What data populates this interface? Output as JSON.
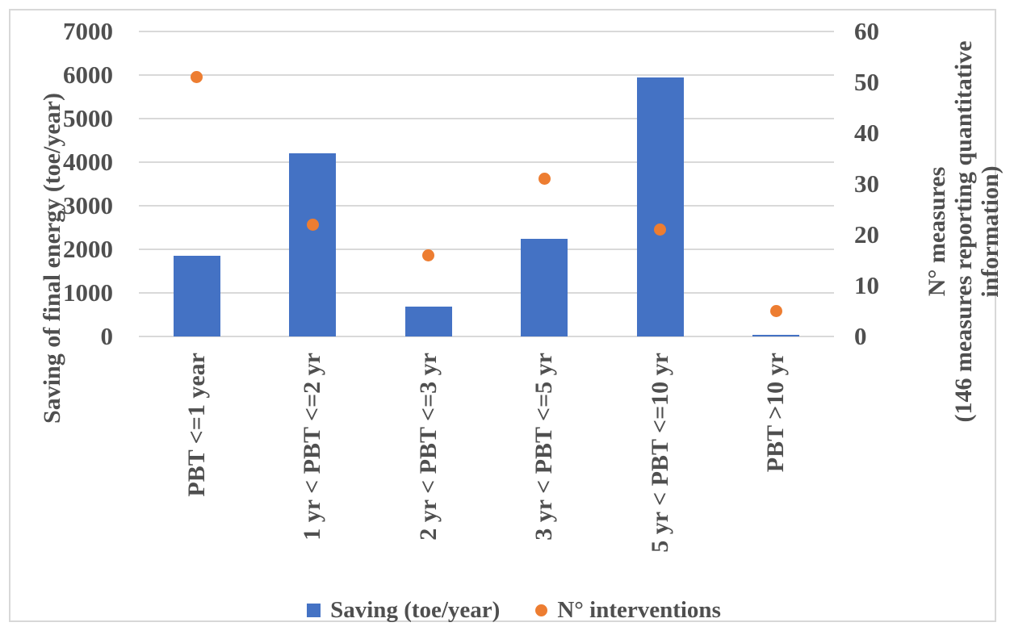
{
  "colors": {
    "bar_blue": "#4472c4",
    "dot_orange": "#ed7d31",
    "gridline": "#d9d9d9",
    "text_gray": "#4f4f4f",
    "figure_border": "#d8d8d8"
  },
  "chart_data": {
    "type": "bar",
    "subtype": "combo bar + scatter, dual axis",
    "categories": [
      "PBT <=1 year",
      "1 yr < PBT <=2 yr",
      "2 yr < PBT <=3 yr",
      "3 yr < PBT <=5 yr",
      "5 yr < PBT <=10 yr",
      "PBT >10 yr"
    ],
    "series": [
      {
        "name": "Saving (toe/year)",
        "type": "bar",
        "axis": "left",
        "marker": "square",
        "color": "#4472c4",
        "values": [
          1860,
          4200,
          690,
          2250,
          5950,
          40
        ]
      },
      {
        "name": "N° interventions",
        "type": "scatter",
        "axis": "right",
        "marker": "circle",
        "color": "#ed7d31",
        "values": [
          51,
          22,
          16,
          31,
          21,
          5
        ]
      }
    ],
    "left_axis": {
      "title": "Saving of final energy (toe/year)",
      "min": 0,
      "max": 7000,
      "step": 1000,
      "ticks": [
        0,
        1000,
        2000,
        3000,
        4000,
        5000,
        6000,
        7000
      ]
    },
    "right_axis": {
      "title": "N° measures (146 measures reporting quantitative information)",
      "title_lines": [
        "N° measures",
        "(146 measures reporting quantitative",
        "information)"
      ],
      "min": 0,
      "max": 60,
      "step": 10,
      "ticks": [
        0,
        10,
        20,
        30,
        40,
        50,
        60
      ]
    },
    "grid": "horizontal only",
    "legend_position": "bottom",
    "title": ""
  },
  "legend": {
    "items": [
      {
        "label": "Saving (toe/year)"
      },
      {
        "label": "N° interventions"
      }
    ]
  }
}
